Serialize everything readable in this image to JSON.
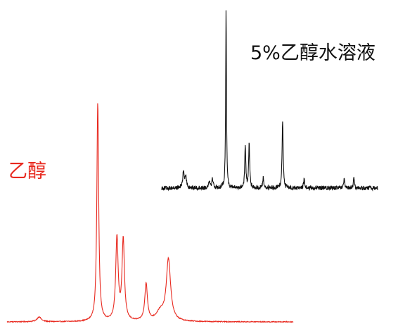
{
  "chart_data": [
    {
      "type": "line",
      "title": "",
      "xlabel": "",
      "ylabel": "",
      "grid": false,
      "legend": "none",
      "series": [
        {
          "name": "乙醇",
          "color": "#e8281e",
          "baseline": 0,
          "noise": 0.002,
          "x_range": [
            0,
            100
          ],
          "peaks": [
            {
              "x": 11.2,
              "height": 0.022,
              "width": 0.9
            },
            {
              "x": 31.7,
              "height": 1.0,
              "width": 0.38
            },
            {
              "x": 38.4,
              "height": 0.38,
              "width": 0.5
            },
            {
              "x": 40.6,
              "height": 0.37,
              "width": 0.5
            },
            {
              "x": 48.6,
              "height": 0.17,
              "width": 0.55
            },
            {
              "x": 56.4,
              "height": 0.28,
              "width": 0.9
            },
            {
              "x": 53.5,
              "height": 0.04,
              "width": 1.6
            }
          ]
        },
        {
          "name": "5%乙醇水溶液",
          "color": "#111111",
          "baseline": 0,
          "noise": 0.012,
          "x_range": [
            0,
            100
          ],
          "peaks": [
            {
              "x": 10.1,
              "height": 0.09,
              "width": 0.45
            },
            {
              "x": 11.2,
              "height": 0.05,
              "width": 0.45
            },
            {
              "x": 22.0,
              "height": 0.04,
              "width": 0.4
            },
            {
              "x": 23.5,
              "height": 0.05,
              "width": 0.4
            },
            {
              "x": 29.8,
              "height": 1.0,
              "width": 0.22
            },
            {
              "x": 38.7,
              "height": 0.24,
              "width": 0.28
            },
            {
              "x": 40.5,
              "height": 0.25,
              "width": 0.28
            },
            {
              "x": 47.0,
              "height": 0.06,
              "width": 0.3
            },
            {
              "x": 56.0,
              "height": 0.38,
              "width": 0.3
            },
            {
              "x": 66.0,
              "height": 0.05,
              "width": 0.3
            },
            {
              "x": 84.5,
              "height": 0.05,
              "width": 0.25
            },
            {
              "x": 89.0,
              "height": 0.06,
              "width": 0.25
            }
          ]
        }
      ]
    }
  ]
}
